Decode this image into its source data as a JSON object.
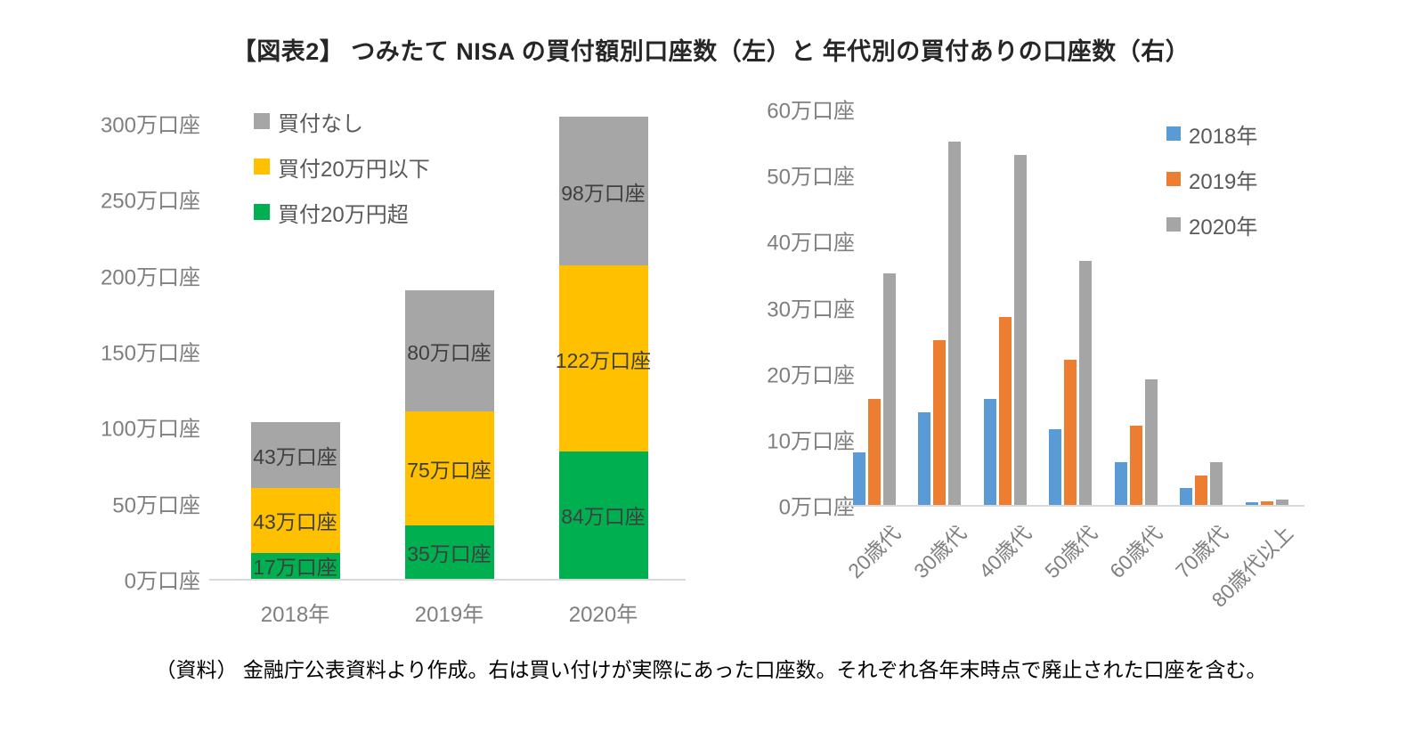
{
  "title": "【図表2】 つみたて NISA の買付額別口座数（左）と 年代別の買付ありの口座数（右）",
  "footer": "（資料） 金融庁公表資料より作成。右は買い付けが実際にあった口座数。それぞれ各年末時点で廃止された口座を含む。",
  "chart_data": [
    {
      "type": "bar",
      "stacking": "stacked",
      "unit": "万口座",
      "categories": [
        "2018年",
        "2019年",
        "2020年"
      ],
      "series": [
        {
          "name": "買付20万円超",
          "color": "#00B050",
          "values": [
            17,
            35,
            84
          ],
          "data_labels": [
            "17万口座",
            "35万口座",
            "84万口座"
          ]
        },
        {
          "name": "買付20万円以下",
          "color": "#FFC000",
          "values": [
            43,
            75,
            122
          ],
          "data_labels": [
            "43万口座",
            "75万口座",
            "122万口座"
          ]
        },
        {
          "name": "買付なし",
          "color": "#A6A6A6",
          "values": [
            43,
            80,
            98
          ],
          "data_labels": [
            "43万口座",
            "80万口座",
            "98万口座"
          ]
        }
      ],
      "legend": {
        "position": "top-left",
        "items": [
          {
            "label": "買付なし",
            "color": "#A6A6A6"
          },
          {
            "label": "買付20万円以下",
            "color": "#FFC000"
          },
          {
            "label": "買付20万円超",
            "color": "#00B050"
          }
        ]
      },
      "y_axis": {
        "min": 0,
        "max": 300,
        "tick_values": [
          0,
          50,
          100,
          150,
          200,
          250,
          300
        ],
        "tick_labels": [
          "0万口座",
          "50万口座",
          "100万口座",
          "150万口座",
          "200万口座",
          "250万口座",
          "300万口座"
        ]
      },
      "grid": false
    },
    {
      "type": "bar",
      "stacking": "grouped",
      "unit": "万口座",
      "categories": [
        "20歳代",
        "30歳代",
        "40歳代",
        "50歳代",
        "60歳代",
        "70歳代",
        "80歳代以上"
      ],
      "series": [
        {
          "name": "2018年",
          "color": "#5B9BD5",
          "values": [
            8,
            14,
            16,
            11.5,
            6.5,
            2.5,
            0.4
          ]
        },
        {
          "name": "2019年",
          "color": "#ED7D31",
          "values": [
            16,
            25,
            28.5,
            22,
            12,
            4.5,
            0.5
          ]
        },
        {
          "name": "2020年",
          "color": "#A5A5A5",
          "values": [
            35,
            55,
            53,
            37,
            19,
            6.5,
            0.8
          ]
        }
      ],
      "legend": {
        "position": "top-right",
        "items": [
          {
            "label": "2018年",
            "color": "#5B9BD5"
          },
          {
            "label": "2019年",
            "color": "#ED7D31"
          },
          {
            "label": "2020年",
            "color": "#A5A5A5"
          }
        ]
      },
      "y_axis": {
        "min": 0,
        "max": 60,
        "tick_values": [
          0,
          10,
          20,
          30,
          40,
          50,
          60
        ],
        "tick_labels": [
          "0万口座",
          "10万口座",
          "20万口座",
          "30万口座",
          "40万口座",
          "50万口座",
          "60万口座"
        ]
      },
      "grid": false
    }
  ]
}
